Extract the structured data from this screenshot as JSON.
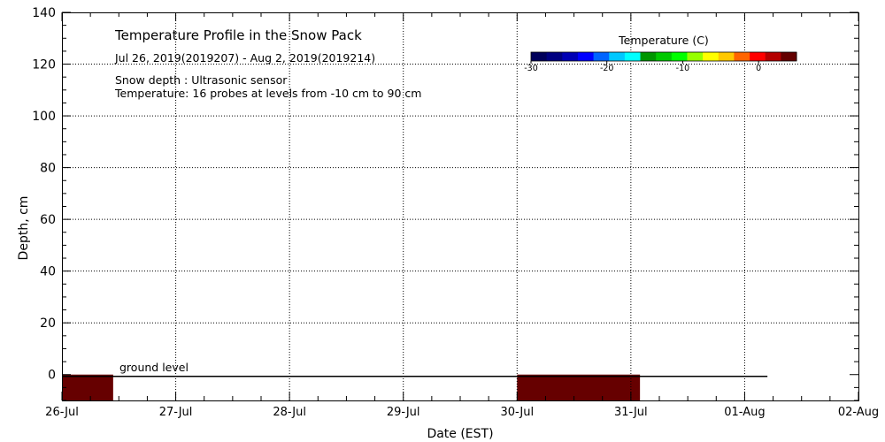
{
  "chart_data": {
    "type": "heatmap",
    "title": "Temperature Profile in the Snow Pack",
    "subtitle": "Jul 26, 2019(2019207) - Aug  2, 2019(2019214)",
    "notes": [
      "Snow depth : Ultrasonic sensor",
      "Temperature: 16 probes at levels from -10 cm to 90 cm"
    ],
    "xlabel": "Date (EST)",
    "ylabel": "Depth, cm",
    "x_ticks": [
      "26-Jul",
      "27-Jul",
      "28-Jul",
      "29-Jul",
      "30-Jul",
      "31-Jul",
      "01-Aug",
      "02-Aug"
    ],
    "xlim": [
      0,
      7
    ],
    "ylim": [
      -10,
      140
    ],
    "y_ticks": [
      0,
      20,
      40,
      60,
      80,
      100,
      120,
      140
    ],
    "grid": true,
    "ground_level": {
      "label": "ground level",
      "value": 0,
      "x_start": 0,
      "x_end": 6.2
    },
    "temperature_blocks": [
      {
        "x_start": 0.0,
        "x_end": 0.45,
        "y_bottom": -10,
        "y_top": 0,
        "color": "#660000"
      },
      {
        "x_start": 4.0,
        "x_end": 5.08,
        "y_bottom": -10,
        "y_top": 0,
        "color": "#660000"
      }
    ],
    "colorbar": {
      "title": "Temperature (C)",
      "range": [
        -30,
        5
      ],
      "tick_values": [
        -30,
        -20,
        -10,
        0
      ],
      "tick_labels": [
        "-30",
        "-20",
        "-10",
        "0"
      ],
      "colors": [
        "#00005a",
        "#000080",
        "#0000b4",
        "#0000ff",
        "#0064ff",
        "#00c8ff",
        "#00ffff",
        "#009600",
        "#00c800",
        "#00ff00",
        "#96ff00",
        "#ffff00",
        "#ffc800",
        "#ff6400",
        "#ff0000",
        "#b40000",
        "#640000"
      ]
    }
  }
}
